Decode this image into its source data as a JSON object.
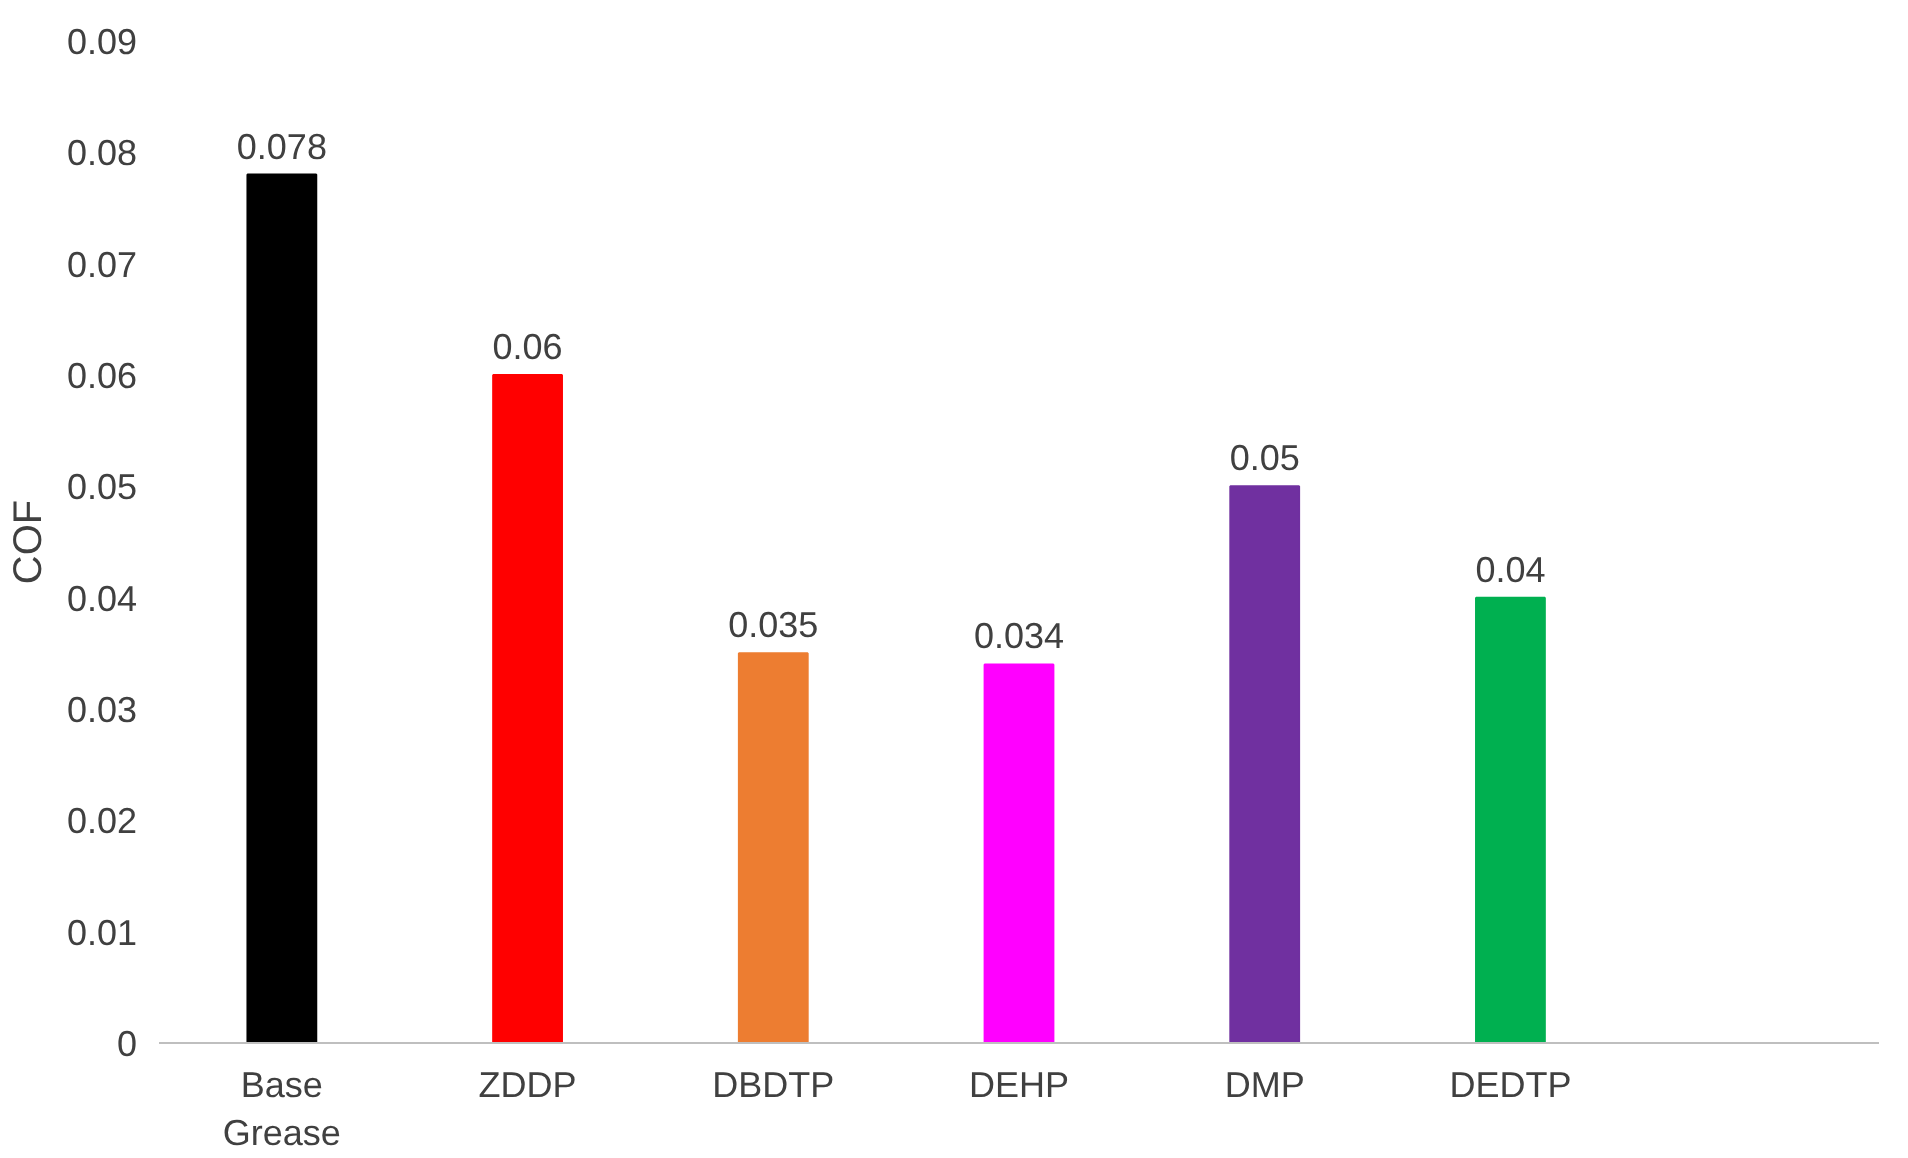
{
  "chart_data": {
    "type": "bar",
    "ylabel": "COF",
    "categories": [
      "Base\nGrease",
      "ZDDP",
      "DBDTP",
      "DEHP",
      "DMP",
      "DEDTP",
      null
    ],
    "values": [
      0.078,
      0.06,
      0.035,
      0.034,
      0.05,
      0.04,
      null
    ],
    "colors": [
      "#000000",
      "#ff0000",
      "#ed7d31",
      "#ff00ff",
      "#7030a0",
      "#00b050",
      null
    ],
    "ylim": [
      0,
      0.09
    ],
    "yticks": [
      0,
      0.01,
      0.02,
      0.03,
      0.04,
      0.05,
      0.06,
      0.07,
      0.08,
      0.09
    ],
    "data_labels": true,
    "grid": false
  }
}
